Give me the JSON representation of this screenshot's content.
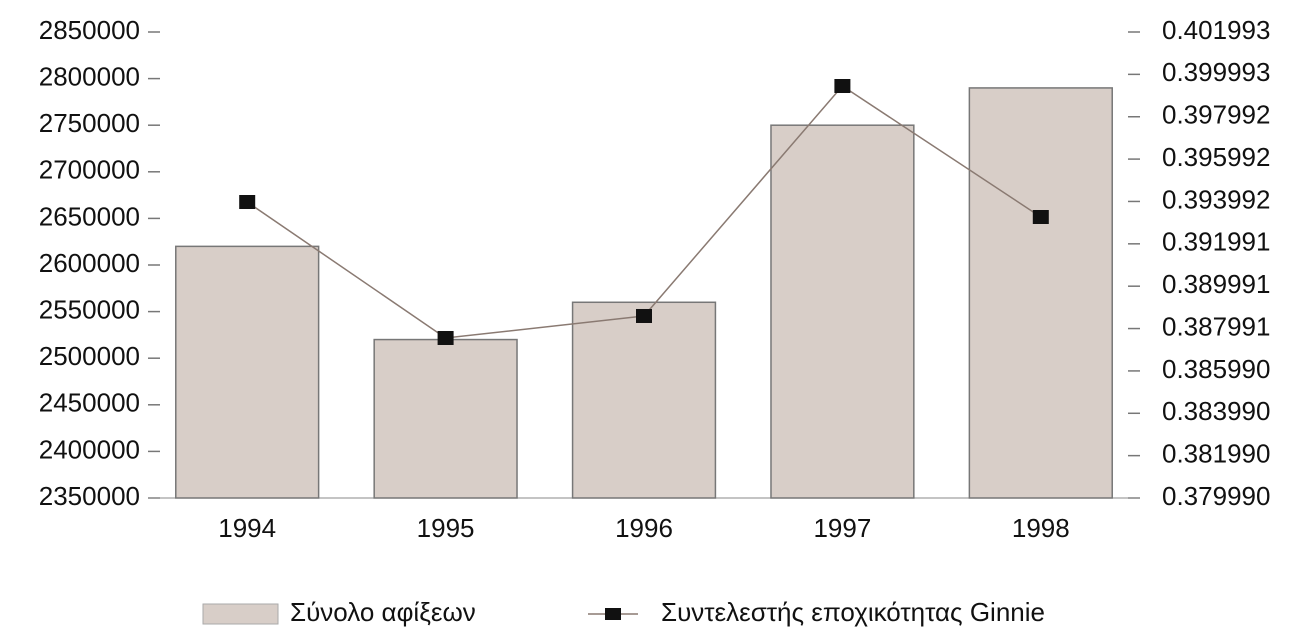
{
  "chart_data": {
    "type": "bar",
    "categories": [
      "1994",
      "1995",
      "1996",
      "1997",
      "1998"
    ],
    "series": [
      {
        "name": "Σύνολο αφίξεων",
        "type": "bar",
        "color": "#d8cec8",
        "values": [
          2620000,
          2520000,
          2560000,
          2750000,
          2790000
        ]
      },
      {
        "name": "Συντελεστής εποχικότητας Ginnie",
        "type": "line",
        "axis": "y2",
        "color": "#8a7a72",
        "marker_color": "#111111",
        "values": [
          0.393966,
          0.387545,
          0.388584,
          0.399443,
          0.393258
        ]
      }
    ],
    "ylim": [
      2350000,
      2850000
    ],
    "yticks": [
      2350000,
      2400000,
      2450000,
      2500000,
      2550000,
      2600000,
      2650000,
      2700000,
      2750000,
      2800000,
      2850000
    ],
    "y2lim": [
      0.37999,
      0.401993
    ],
    "y2ticks": [
      {
        "value": 0.37999,
        "label": "0.379990"
      },
      {
        "value": 0.38199,
        "label": "0.381990"
      },
      {
        "value": 0.38399,
        "label": "0.383990"
      },
      {
        "value": 0.38599,
        "label": "0.385990"
      },
      0.387991,
      0.389991,
      0.391991,
      0.393992,
      0.395992,
      0.397992,
      0.399993,
      0.401993
    ],
    "legend": "bottom"
  }
}
